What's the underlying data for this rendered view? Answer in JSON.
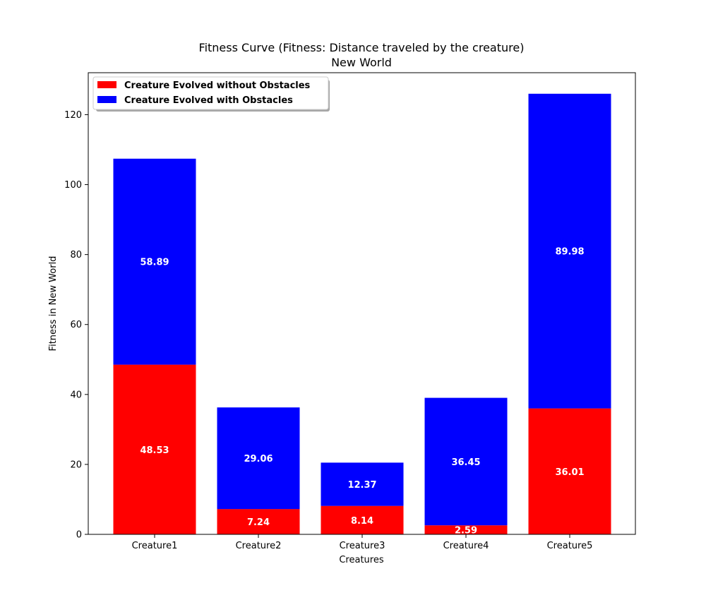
{
  "chart_data": {
    "type": "bar",
    "stacked": true,
    "title": "Fitness Curve (Fitness: Distance traveled by the creature)",
    "subtitle": "New World",
    "xlabel": "Creatures",
    "ylabel": "Fitness in New World",
    "categories": [
      "Creature1",
      "Creature2",
      "Creature3",
      "Creature4",
      "Creature5"
    ],
    "ylim": [
      0,
      132
    ],
    "yticks": [
      0,
      20,
      40,
      60,
      80,
      100,
      120
    ],
    "grid": false,
    "legend_position": "top-left",
    "series": [
      {
        "name": "Creature Evolved without Obstacles",
        "color": "#ff0000",
        "values": [
          48.53,
          7.24,
          8.14,
          2.59,
          36.01
        ],
        "labels": [
          "48.53",
          "7.24",
          "8.14",
          "2.59",
          "36.01"
        ]
      },
      {
        "name": "Creature Evolved with Obstacles",
        "color": "#0000ff",
        "values": [
          58.89,
          29.06,
          12.37,
          36.45,
          89.98
        ],
        "labels": [
          "58.89",
          "29.06",
          "12.37",
          "36.45",
          "89.98"
        ]
      }
    ]
  }
}
